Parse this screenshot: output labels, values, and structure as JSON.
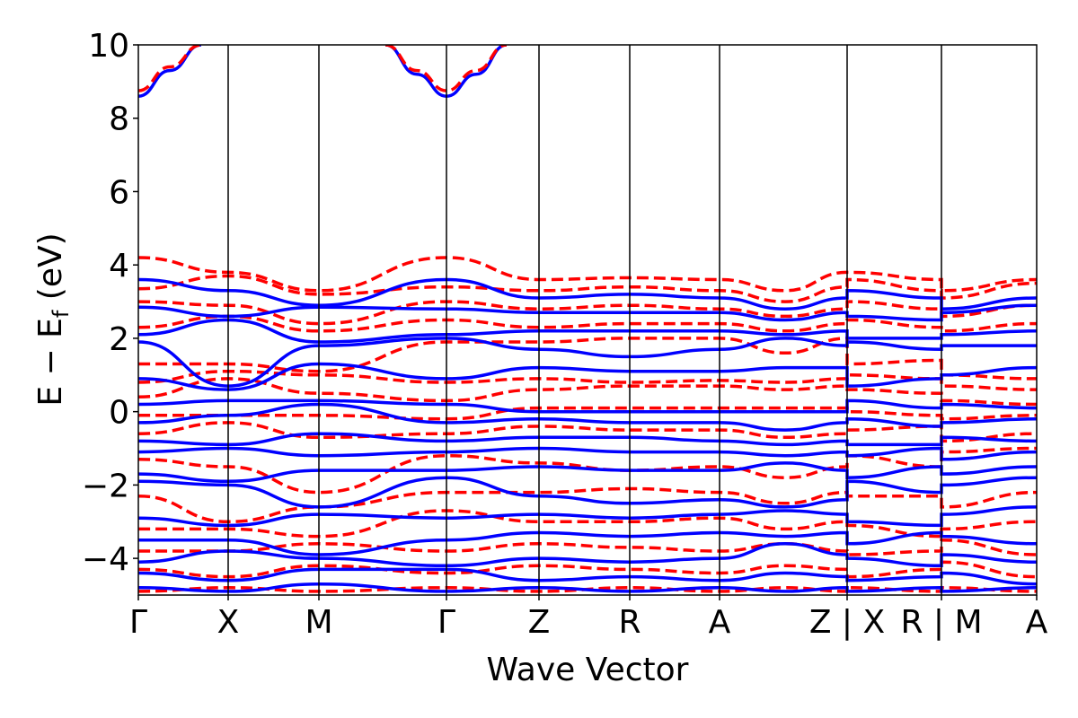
{
  "chart_data": {
    "type": "line",
    "title": "",
    "xlabel": "Wave Vector",
    "ylabel_main": "E − E",
    "ylabel_sub": "f",
    "ylabel_unit": " (eV)",
    "ylim": [
      -5,
      10
    ],
    "xlim": [
      0,
      1
    ],
    "yticks": [
      {
        "value": 10,
        "label": "10"
      },
      {
        "value": 8,
        "label": "8"
      },
      {
        "value": 6,
        "label": "6"
      },
      {
        "value": 4,
        "label": "4"
      },
      {
        "value": 2,
        "label": "2"
      },
      {
        "value": 0,
        "label": "0"
      },
      {
        "value": -2,
        "label": "−2"
      },
      {
        "value": -4,
        "label": "−4"
      }
    ],
    "kpoints": [
      {
        "x": 0.0,
        "label": "Γ"
      },
      {
        "x": 0.1,
        "label": "X"
      },
      {
        "x": 0.201,
        "label": "M"
      },
      {
        "x": 0.343,
        "label": "Γ"
      },
      {
        "x": 0.446,
        "label": "Z"
      },
      {
        "x": 0.547,
        "label": "R"
      },
      {
        "x": 0.647,
        "label": "A"
      },
      {
        "x": 0.789,
        "label": "Z | X"
      },
      {
        "x": 0.894,
        "label": "R | M"
      },
      {
        "x": 1.0,
        "label": "A"
      }
    ],
    "series_styles": {
      "solid": {
        "color": "#0000ff"
      },
      "dashed": {
        "color": "#ff0000"
      }
    },
    "series": [
      {
        "style": "solid",
        "x": [
          0.0,
          0.035,
          0.07
        ],
        "y": [
          8.6,
          9.3,
          10.0
        ]
      },
      {
        "style": "dashed",
        "x": [
          0.0,
          0.035,
          0.07
        ],
        "y": [
          8.75,
          9.4,
          10.0
        ]
      },
      {
        "style": "solid",
        "x": [
          0.275,
          0.31,
          0.343,
          0.376,
          0.41
        ],
        "y": [
          10.0,
          9.2,
          8.6,
          9.2,
          10.0
        ]
      },
      {
        "style": "dashed",
        "x": [
          0.275,
          0.31,
          0.343,
          0.376,
          0.41
        ],
        "y": [
          10.0,
          9.3,
          8.75,
          9.3,
          10.0
        ]
      },
      {
        "style": "dashed",
        "x": [
          0.0,
          0.1,
          0.201,
          0.343,
          0.446,
          0.547,
          0.647,
          0.72,
          0.789,
          0.789,
          0.894,
          0.894,
          1.0
        ],
        "y": [
          4.2,
          3.8,
          3.3,
          4.2,
          3.6,
          3.65,
          3.6,
          3.3,
          3.8,
          3.8,
          3.6,
          3.3,
          3.6
        ]
      },
      {
        "style": "dashed",
        "x": [
          0.0,
          0.1,
          0.201,
          0.343,
          0.446,
          0.547,
          0.647,
          0.72,
          0.789,
          0.789,
          0.894,
          0.894,
          1.0
        ],
        "y": [
          3.35,
          3.7,
          3.2,
          3.4,
          3.3,
          3.4,
          3.3,
          3.0,
          3.4,
          3.6,
          3.3,
          3.1,
          3.5
        ]
      },
      {
        "style": "dashed",
        "x": [
          0.0,
          0.1,
          0.201,
          0.343,
          0.446,
          0.547,
          0.647,
          0.72,
          0.789,
          0.789,
          0.894,
          0.894,
          1.0
        ],
        "y": [
          3.0,
          2.9,
          2.4,
          3.0,
          2.8,
          2.9,
          2.8,
          2.6,
          2.8,
          3.0,
          2.8,
          2.6,
          2.9
        ]
      },
      {
        "style": "dashed",
        "x": [
          0.0,
          0.1,
          0.201,
          0.343,
          0.446,
          0.547,
          0.647,
          0.72,
          0.789,
          0.789,
          0.894,
          0.894,
          1.0
        ],
        "y": [
          2.3,
          2.6,
          2.2,
          2.5,
          2.3,
          2.4,
          2.4,
          2.2,
          2.4,
          2.5,
          2.3,
          2.2,
          2.4
        ]
      },
      {
        "style": "dashed",
        "x": [
          0.0,
          0.1,
          0.201,
          0.343,
          0.446,
          0.547,
          0.647,
          0.72,
          0.789,
          0.789,
          0.894,
          0.894,
          1.0
        ],
        "y": [
          1.3,
          1.3,
          1.1,
          1.9,
          1.9,
          2.0,
          2.0,
          1.6,
          2.0,
          1.3,
          1.4,
          1.0,
          0.9
        ]
      },
      {
        "style": "dashed",
        "x": [
          0.0,
          0.1,
          0.201,
          0.343,
          0.446,
          0.547,
          0.647,
          0.72,
          0.789,
          0.789,
          0.894,
          0.894,
          1.0
        ],
        "y": [
          0.8,
          1.1,
          1.0,
          0.8,
          0.9,
          0.8,
          0.85,
          0.8,
          0.9,
          1.0,
          0.9,
          0.7,
          0.6
        ]
      },
      {
        "style": "dashed",
        "x": [
          0.0,
          0.1,
          0.201,
          0.343,
          0.446,
          0.547,
          0.647,
          0.72,
          0.789,
          0.789,
          0.894,
          0.894,
          1.0
        ],
        "y": [
          0.4,
          0.9,
          0.5,
          0.3,
          0.6,
          0.7,
          0.7,
          0.6,
          0.7,
          0.6,
          0.5,
          0.3,
          0.2
        ]
      },
      {
        "style": "dashed",
        "x": [
          0.0,
          0.1,
          0.201,
          0.343,
          0.446,
          0.547,
          0.647,
          0.72,
          0.789,
          0.789,
          0.894,
          0.894,
          1.0
        ],
        "y": [
          -0.1,
          -0.1,
          -0.1,
          -0.2,
          0.1,
          0.1,
          0.1,
          0.1,
          0.1,
          0.0,
          -0.1,
          -0.2,
          -0.1
        ]
      },
      {
        "style": "dashed",
        "x": [
          0.0,
          0.1,
          0.201,
          0.343,
          0.446,
          0.547,
          0.647,
          0.72,
          0.789,
          0.789,
          0.894,
          0.894,
          1.0
        ],
        "y": [
          -0.6,
          -0.3,
          -0.7,
          -0.6,
          -0.4,
          -0.5,
          -0.5,
          -0.7,
          -0.6,
          -0.5,
          -0.4,
          -0.8,
          -0.6
        ]
      },
      {
        "style": "dashed",
        "x": [
          0.0,
          0.1,
          0.201,
          0.343,
          0.446,
          0.547,
          0.647,
          0.72,
          0.789,
          0.789,
          0.894,
          0.894,
          1.0
        ],
        "y": [
          -1.3,
          -1.5,
          -2.2,
          -1.2,
          -1.4,
          -1.6,
          -1.5,
          -1.8,
          -1.5,
          -1.2,
          -1.5,
          -1.1,
          -1.0
        ]
      },
      {
        "style": "dashed",
        "x": [
          0.0,
          0.1,
          0.201,
          0.343,
          0.446,
          0.547,
          0.647,
          0.72,
          0.789,
          0.789,
          0.894,
          0.894,
          1.0
        ],
        "y": [
          -2.3,
          -3.0,
          -2.6,
          -2.2,
          -2.2,
          -2.1,
          -2.2,
          -2.5,
          -2.2,
          -2.3,
          -2.3,
          -2.6,
          -2.2
        ]
      },
      {
        "style": "dashed",
        "x": [
          0.0,
          0.1,
          0.201,
          0.343,
          0.446,
          0.547,
          0.647,
          0.72,
          0.789,
          0.789,
          0.894,
          0.894,
          1.0
        ],
        "y": [
          -3.2,
          -3.2,
          -3.4,
          -2.7,
          -3.0,
          -3.0,
          -2.9,
          -3.2,
          -3.0,
          -3.1,
          -3.4,
          -3.2,
          -3.0
        ]
      },
      {
        "style": "dashed",
        "x": [
          0.0,
          0.1,
          0.201,
          0.343,
          0.446,
          0.547,
          0.647,
          0.72,
          0.789,
          0.789,
          0.894,
          0.894,
          1.0
        ],
        "y": [
          -3.8,
          -3.8,
          -3.6,
          -3.8,
          -3.6,
          -3.7,
          -3.8,
          -3.6,
          -3.8,
          -3.9,
          -3.8,
          -3.5,
          -3.9
        ]
      },
      {
        "style": "dashed",
        "x": [
          0.0,
          0.1,
          0.201,
          0.343,
          0.446,
          0.547,
          0.647,
          0.72,
          0.789,
          0.789,
          0.894,
          0.894,
          1.0
        ],
        "y": [
          -4.3,
          -4.5,
          -4.2,
          -4.4,
          -4.2,
          -4.3,
          -4.4,
          -4.2,
          -4.3,
          -4.5,
          -4.3,
          -4.1,
          -4.5
        ]
      },
      {
        "style": "dashed",
        "x": [
          0.0,
          0.1,
          0.201,
          0.343,
          0.446,
          0.547,
          0.647,
          0.72,
          0.789,
          0.789,
          0.894,
          0.894,
          1.0
        ],
        "y": [
          -4.9,
          -4.8,
          -4.9,
          -4.8,
          -4.9,
          -4.8,
          -4.9,
          -4.8,
          -4.9,
          -4.8,
          -4.9,
          -4.8,
          -4.9
        ]
      },
      {
        "style": "solid",
        "x": [
          0.0,
          0.1,
          0.201,
          0.343,
          0.446,
          0.547,
          0.647,
          0.72,
          0.789,
          0.789,
          0.894,
          0.894,
          1.0
        ],
        "y": [
          3.6,
          3.3,
          2.9,
          3.6,
          3.1,
          3.2,
          3.1,
          2.8,
          3.1,
          3.3,
          3.1,
          2.8,
          3.1
        ]
      },
      {
        "style": "solid",
        "x": [
          0.0,
          0.1,
          0.201,
          0.343,
          0.446,
          0.547,
          0.647,
          0.72,
          0.789,
          0.789,
          0.894,
          0.894,
          1.0
        ],
        "y": [
          2.85,
          2.6,
          2.85,
          2.8,
          2.7,
          2.7,
          2.7,
          2.5,
          2.7,
          2.6,
          2.5,
          2.7,
          2.9
        ]
      },
      {
        "style": "solid",
        "x": [
          0.0,
          0.1,
          0.201,
          0.343,
          0.446,
          0.547,
          0.647,
          0.72,
          0.789,
          0.789,
          0.894,
          0.894,
          1.0
        ],
        "y": [
          2.1,
          2.5,
          1.9,
          2.1,
          2.2,
          2.2,
          2.2,
          2.1,
          2.2,
          2.0,
          2.0,
          2.1,
          2.2
        ]
      },
      {
        "style": "solid",
        "x": [
          0.0,
          0.1,
          0.201,
          0.343,
          0.446,
          0.547,
          0.647,
          0.72,
          0.789,
          0.789,
          0.894,
          0.894,
          1.0
        ],
        "y": [
          1.9,
          0.7,
          1.8,
          2.0,
          1.7,
          1.5,
          1.7,
          2.0,
          1.8,
          1.9,
          1.7,
          1.8,
          1.8
        ]
      },
      {
        "style": "solid",
        "x": [
          0.0,
          0.1,
          0.201,
          0.343,
          0.446,
          0.547,
          0.647,
          0.72,
          0.789,
          0.789,
          0.894,
          0.894,
          1.0
        ],
        "y": [
          0.9,
          0.6,
          1.3,
          0.9,
          1.2,
          1.1,
          1.1,
          1.2,
          1.2,
          0.7,
          0.9,
          1.0,
          1.2
        ]
      },
      {
        "style": "solid",
        "x": [
          0.0,
          0.1,
          0.201,
          0.343,
          0.446,
          0.547,
          0.647,
          0.72,
          0.789,
          0.789,
          0.894,
          0.894,
          1.0
        ],
        "y": [
          0.2,
          0.3,
          0.3,
          0.2,
          0.0,
          0.0,
          0.0,
          0.0,
          0.0,
          0.3,
          0.1,
          0.2,
          0.1
        ]
      },
      {
        "style": "solid",
        "x": [
          0.0,
          0.1,
          0.201,
          0.343,
          0.446,
          0.547,
          0.647,
          0.72,
          0.789,
          0.789,
          0.894,
          0.894,
          1.0
        ],
        "y": [
          -0.3,
          -0.1,
          0.2,
          -0.3,
          -0.2,
          -0.3,
          -0.3,
          -0.5,
          -0.3,
          -0.2,
          -0.4,
          -0.3,
          -0.2
        ]
      },
      {
        "style": "solid",
        "x": [
          0.0,
          0.1,
          0.201,
          0.343,
          0.446,
          0.547,
          0.647,
          0.72,
          0.789,
          0.789,
          0.894,
          0.894,
          1.0
        ],
        "y": [
          -0.8,
          -0.9,
          -0.6,
          -0.8,
          -0.7,
          -0.7,
          -0.8,
          -0.9,
          -0.8,
          -0.9,
          -0.9,
          -0.7,
          -0.8
        ]
      },
      {
        "style": "solid",
        "x": [
          0.0,
          0.1,
          0.201,
          0.343,
          0.446,
          0.547,
          0.647,
          0.72,
          0.789,
          0.789,
          0.894,
          0.894,
          1.0
        ],
        "y": [
          -1.1,
          -1.0,
          -1.2,
          -1.1,
          -1.0,
          -1.1,
          -1.1,
          -1.2,
          -1.1,
          -1.2,
          -1.0,
          -1.3,
          -1.1
        ]
      },
      {
        "style": "solid",
        "x": [
          0.0,
          0.1,
          0.201,
          0.343,
          0.446,
          0.547,
          0.647,
          0.72,
          0.789,
          0.789,
          0.894,
          0.894,
          1.0
        ],
        "y": [
          -1.7,
          -1.9,
          -1.6,
          -1.6,
          -1.5,
          -1.6,
          -1.6,
          -1.4,
          -1.6,
          -1.8,
          -1.5,
          -1.7,
          -1.5
        ]
      },
      {
        "style": "solid",
        "x": [
          0.0,
          0.1,
          0.201,
          0.343,
          0.446,
          0.547,
          0.647,
          0.72,
          0.789,
          0.789,
          0.894,
          0.894,
          1.0
        ],
        "y": [
          -1.9,
          -2.0,
          -2.6,
          -1.8,
          -2.3,
          -2.5,
          -2.4,
          -2.6,
          -2.4,
          -1.9,
          -2.2,
          -2.0,
          -1.8
        ]
      },
      {
        "style": "solid",
        "x": [
          0.0,
          0.1,
          0.201,
          0.343,
          0.446,
          0.547,
          0.647,
          0.72,
          0.789,
          0.789,
          0.894,
          0.894,
          1.0
        ],
        "y": [
          -2.9,
          -3.1,
          -2.8,
          -2.9,
          -2.8,
          -2.9,
          -2.8,
          -2.7,
          -2.8,
          -3.0,
          -3.1,
          -2.8,
          -2.6
        ]
      },
      {
        "style": "solid",
        "x": [
          0.0,
          0.1,
          0.201,
          0.343,
          0.446,
          0.547,
          0.647,
          0.72,
          0.789,
          0.789,
          0.894,
          0.894,
          1.0
        ],
        "y": [
          -3.5,
          -3.5,
          -3.9,
          -3.5,
          -3.3,
          -3.4,
          -3.3,
          -3.4,
          -3.3,
          -3.6,
          -3.3,
          -3.4,
          -3.6
        ]
      },
      {
        "style": "solid",
        "x": [
          0.0,
          0.1,
          0.201,
          0.343,
          0.446,
          0.547,
          0.647,
          0.72,
          0.789,
          0.789,
          0.894,
          0.894,
          1.0
        ],
        "y": [
          -4.1,
          -3.8,
          -4.0,
          -4.2,
          -4.0,
          -4.1,
          -4.0,
          -3.6,
          -3.9,
          -4.0,
          -4.2,
          -3.9,
          -4.1
        ]
      },
      {
        "style": "solid",
        "x": [
          0.0,
          0.1,
          0.201,
          0.343,
          0.446,
          0.547,
          0.647,
          0.72,
          0.789,
          0.789,
          0.894,
          0.894,
          1.0
        ],
        "y": [
          -4.4,
          -4.6,
          -4.3,
          -4.3,
          -4.6,
          -4.5,
          -4.6,
          -4.4,
          -4.5,
          -4.6,
          -4.5,
          -4.4,
          -4.7
        ]
      },
      {
        "style": "solid",
        "x": [
          0.0,
          0.1,
          0.201,
          0.343,
          0.446,
          0.547,
          0.647,
          0.72,
          0.789,
          0.789,
          0.894,
          0.894,
          1.0
        ],
        "y": [
          -4.8,
          -4.9,
          -4.7,
          -4.9,
          -4.8,
          -4.9,
          -4.8,
          -4.9,
          -4.8,
          -4.9,
          -4.8,
          -4.9,
          -4.8
        ]
      }
    ],
    "grid": false,
    "legend": "none"
  }
}
